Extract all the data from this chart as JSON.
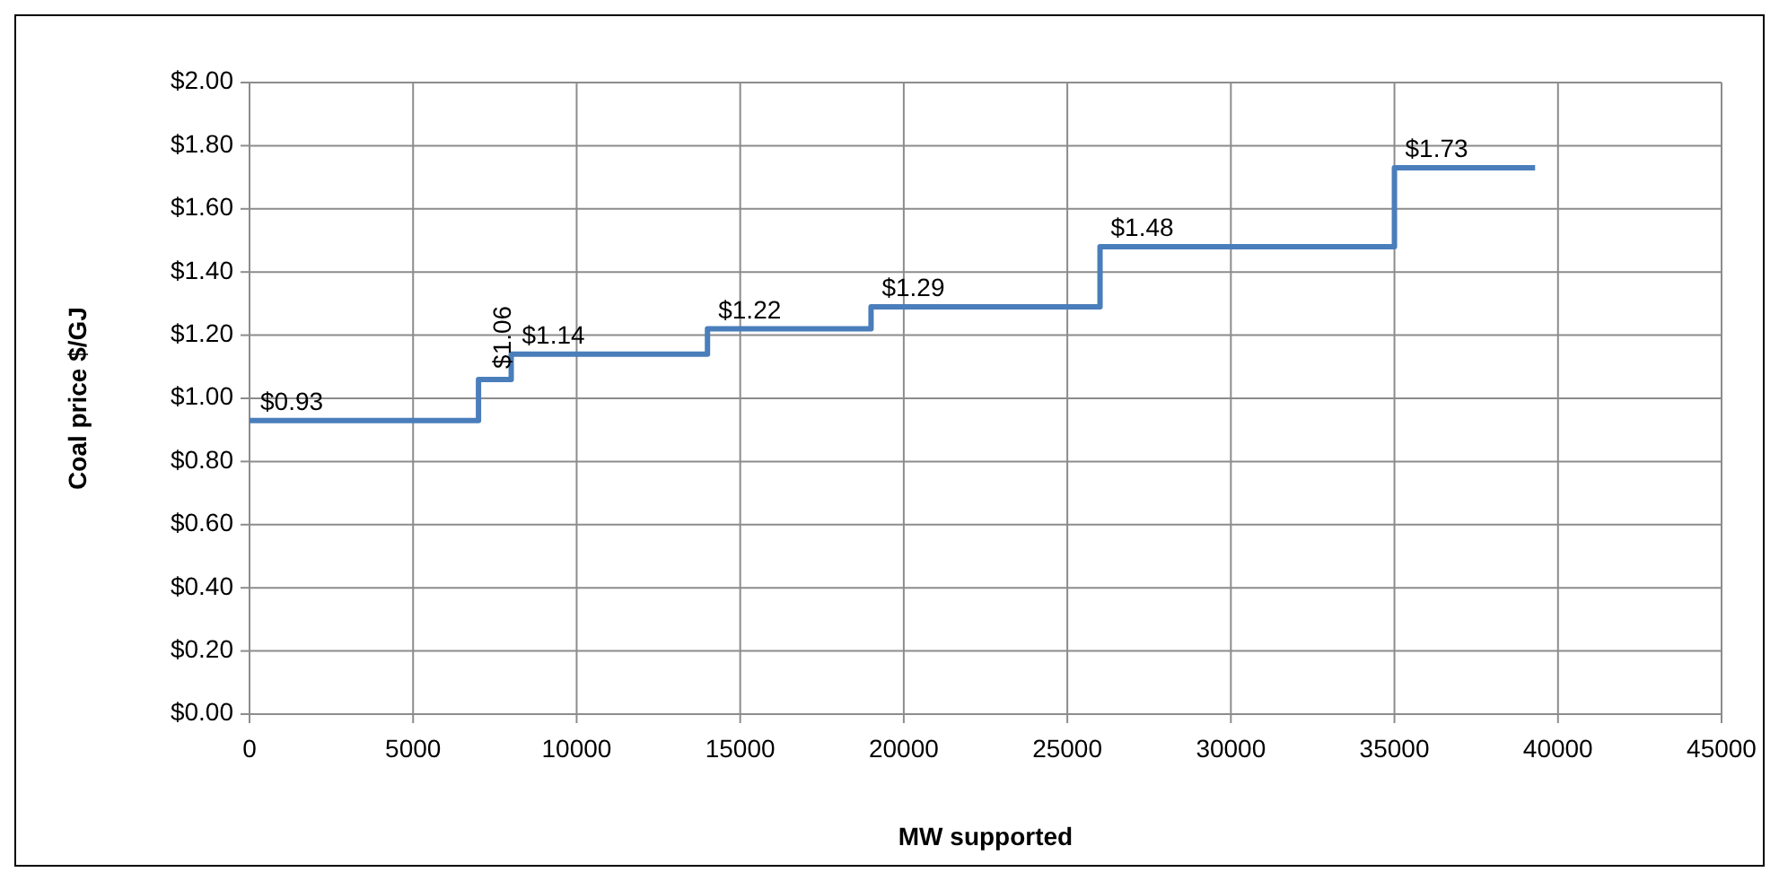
{
  "chart_data": {
    "type": "step",
    "xlabel": "MW supported",
    "ylabel": "Coal price $/GJ",
    "x": [
      0,
      7000,
      8000,
      14000,
      19000,
      26000,
      35000,
      39300
    ],
    "series": [
      {
        "color": "#4a7ebb",
        "values": [
          0.93,
          1.06,
          1.14,
          1.22,
          1.29,
          1.48,
          1.73,
          1.73
        ],
        "value_labels": [
          "$0.93",
          "$1.06",
          "$1.14",
          "$1.22",
          "$1.29",
          "$1.48",
          "$1.73",
          null
        ]
      }
    ],
    "xlim": [
      0,
      45000
    ],
    "xticks": [
      0,
      5000,
      10000,
      15000,
      20000,
      25000,
      30000,
      35000,
      40000,
      45000
    ],
    "ylim": [
      0,
      2
    ],
    "yticks": [
      {
        "value": 0,
        "label": "$0.00"
      },
      {
        "value": 0.2,
        "label": "$0.20"
      },
      {
        "value": 0.4,
        "label": "$0.40"
      },
      {
        "value": 0.6,
        "label": "$0.60"
      },
      {
        "value": 0.8,
        "label": "$0.80"
      },
      {
        "value": 1,
        "label": "$1.00"
      },
      {
        "value": 1.2,
        "label": "$1.20"
      },
      {
        "value": 1.4,
        "label": "$1.40"
      },
      {
        "value": 1.6,
        "label": "$1.60"
      },
      {
        "value": 1.8,
        "label": "$1.80"
      },
      {
        "value": 2,
        "label": "$2.00"
      }
    ],
    "grid": true
  }
}
